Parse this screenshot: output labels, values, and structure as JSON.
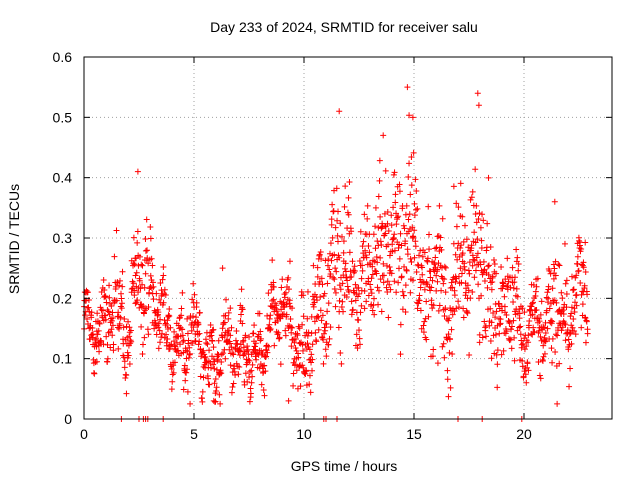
{
  "chart_data": {
    "type": "scatter",
    "title": "Day 233 of 2024, SRMTID for receiver salu",
    "xlabel": "GPS time / hours",
    "ylabel": "SRMTID / TECUs",
    "xlim": [
      0,
      24
    ],
    "ylim": [
      0,
      0.6
    ],
    "xticks": [
      0,
      5,
      10,
      15,
      20
    ],
    "yticks": [
      0,
      0.1,
      0.2,
      0.3,
      0.4,
      0.5,
      0.6
    ],
    "xtick_labels": [
      "0",
      "5",
      "10",
      "15",
      "20"
    ],
    "ytick_labels": [
      "0",
      "0.1",
      "0.2",
      "0.3",
      "0.4",
      "0.5",
      "0.6"
    ],
    "grid": true,
    "marker": "+",
    "color": "#ff0000",
    "x_range_of_data": [
      0,
      22.9
    ],
    "baseline_markers_x": [
      1.7,
      2.5,
      2.7,
      2.8,
      2.9,
      3.6,
      10.9,
      11.0,
      11.5,
      17.0,
      18.1,
      19.9
    ],
    "envelope": {
      "hours": [
        0,
        0.5,
        1,
        1.5,
        2,
        2.5,
        3,
        3.5,
        4,
        4.5,
        5,
        5.5,
        6,
        6.5,
        7,
        7.5,
        8,
        8.5,
        9,
        9.5,
        10,
        10.5,
        11,
        11.5,
        12,
        12.5,
        13,
        13.5,
        14,
        14.5,
        15,
        15.5,
        16,
        16.5,
        17,
        17.5,
        18,
        18.5,
        19,
        19.5,
        20,
        20.5,
        21,
        21.5,
        22,
        22.5,
        22.9
      ],
      "median": [
        0.17,
        0.14,
        0.15,
        0.2,
        0.12,
        0.26,
        0.21,
        0.18,
        0.13,
        0.11,
        0.16,
        0.1,
        0.09,
        0.13,
        0.11,
        0.1,
        0.09,
        0.17,
        0.2,
        0.14,
        0.09,
        0.18,
        0.2,
        0.27,
        0.26,
        0.22,
        0.25,
        0.29,
        0.3,
        0.28,
        0.32,
        0.2,
        0.24,
        0.16,
        0.26,
        0.24,
        0.29,
        0.21,
        0.18,
        0.21,
        0.12,
        0.16,
        0.14,
        0.2,
        0.14,
        0.23,
        0.2
      ],
      "spread": [
        0.04,
        0.04,
        0.05,
        0.06,
        0.05,
        0.07,
        0.06,
        0.05,
        0.04,
        0.04,
        0.06,
        0.04,
        0.04,
        0.04,
        0.04,
        0.04,
        0.04,
        0.05,
        0.05,
        0.05,
        0.05,
        0.06,
        0.07,
        0.09,
        0.08,
        0.08,
        0.09,
        0.1,
        0.1,
        0.11,
        0.12,
        0.08,
        0.08,
        0.07,
        0.1,
        0.1,
        0.1,
        0.08,
        0.07,
        0.08,
        0.05,
        0.06,
        0.05,
        0.08,
        0.05,
        0.06,
        0.05
      ]
    },
    "peaks": [
      {
        "x": 2.45,
        "y": 0.41
      },
      {
        "x": 6.3,
        "y": 0.25
      },
      {
        "x": 11.6,
        "y": 0.51
      },
      {
        "x": 13.6,
        "y": 0.47
      },
      {
        "x": 14.7,
        "y": 0.55
      },
      {
        "x": 14.95,
        "y": 0.5
      },
      {
        "x": 17.9,
        "y": 0.54
      },
      {
        "x": 17.95,
        "y": 0.52
      },
      {
        "x": 21.4,
        "y": 0.36
      },
      {
        "x": 0.15,
        "y": 0.21
      },
      {
        "x": 9.3,
        "y": 0.03
      },
      {
        "x": 5.9,
        "y": 0.03
      }
    ]
  }
}
